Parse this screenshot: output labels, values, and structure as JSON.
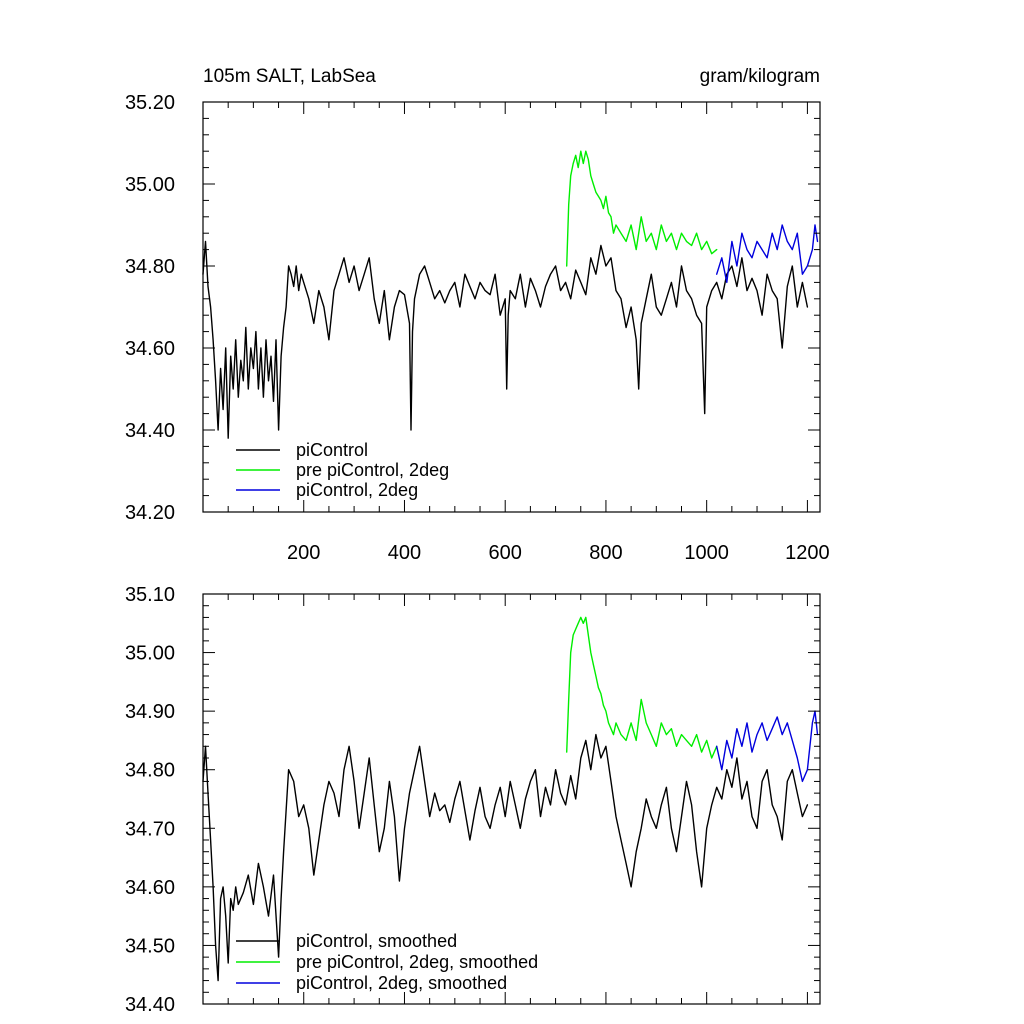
{
  "chart_data": [
    {
      "type": "line",
      "title": "105m SALT, LabSea",
      "units": "gram/kilogram",
      "xlim": [
        0,
        1225
      ],
      "ylim": [
        34.2,
        35.2
      ],
      "yticks": [
        34.2,
        34.4,
        34.6,
        34.8,
        35.0,
        35.2
      ],
      "ytick_labels": [
        "34.20",
        "34.40",
        "34.60",
        "34.80",
        "35.00",
        "35.20"
      ],
      "xticks": [
        200,
        400,
        600,
        800,
        1000,
        1200
      ],
      "xtick_labels": [
        "200",
        "400",
        "600",
        "800",
        "1000",
        "1200"
      ],
      "series": [
        {
          "name": "piControl",
          "color": "#000000",
          "x": [
            0,
            5,
            10,
            15,
            20,
            25,
            30,
            35,
            40,
            45,
            50,
            55,
            60,
            65,
            70,
            75,
            80,
            85,
            90,
            95,
            100,
            105,
            110,
            115,
            120,
            125,
            130,
            135,
            140,
            145,
            150,
            155,
            160,
            165,
            170,
            175,
            180,
            185,
            190,
            195,
            200,
            210,
            220,
            230,
            240,
            250,
            260,
            270,
            280,
            290,
            300,
            310,
            320,
            330,
            340,
            350,
            360,
            370,
            380,
            390,
            400,
            410,
            413,
            416,
            420,
            430,
            440,
            450,
            460,
            470,
            480,
            490,
            500,
            510,
            520,
            530,
            540,
            550,
            560,
            570,
            580,
            590,
            600,
            603,
            606,
            610,
            620,
            630,
            640,
            650,
            660,
            670,
            680,
            690,
            700,
            710,
            720,
            730,
            740,
            750,
            760,
            770,
            780,
            790,
            800,
            810,
            820,
            830,
            840,
            850,
            860,
            865,
            870,
            880,
            890,
            900,
            910,
            920,
            930,
            940,
            950,
            960,
            970,
            980,
            990,
            996,
            1000,
            1010,
            1020,
            1030,
            1040,
            1050,
            1060,
            1070,
            1080,
            1090,
            1100,
            1110,
            1120,
            1130,
            1140,
            1150,
            1160,
            1170,
            1180,
            1190,
            1200
          ],
          "values": [
            34.78,
            34.86,
            34.75,
            34.7,
            34.62,
            34.52,
            34.4,
            34.55,
            34.45,
            34.6,
            34.38,
            34.58,
            34.5,
            34.62,
            34.48,
            34.57,
            34.52,
            34.65,
            34.5,
            34.6,
            34.55,
            34.64,
            34.5,
            34.6,
            34.48,
            34.62,
            34.52,
            34.58,
            34.47,
            34.62,
            34.4,
            34.58,
            34.65,
            34.7,
            34.8,
            34.78,
            34.75,
            34.8,
            34.74,
            34.78,
            34.76,
            34.72,
            34.66,
            34.74,
            34.7,
            34.62,
            34.74,
            34.78,
            34.82,
            34.76,
            34.8,
            34.74,
            34.78,
            34.82,
            34.72,
            34.66,
            34.74,
            34.62,
            34.7,
            34.74,
            34.73,
            34.66,
            34.4,
            34.64,
            34.72,
            34.78,
            34.8,
            34.76,
            34.72,
            34.74,
            34.71,
            34.74,
            34.76,
            34.7,
            34.78,
            34.75,
            34.72,
            34.76,
            34.74,
            34.73,
            34.78,
            34.68,
            34.72,
            34.5,
            34.68,
            34.74,
            34.72,
            34.78,
            34.7,
            34.77,
            34.74,
            34.7,
            34.75,
            34.78,
            34.8,
            34.74,
            34.76,
            34.72,
            34.79,
            34.76,
            34.73,
            34.82,
            34.78,
            34.85,
            34.8,
            34.82,
            34.74,
            34.72,
            34.65,
            34.7,
            34.62,
            34.5,
            34.66,
            34.72,
            34.78,
            34.7,
            34.68,
            34.72,
            34.76,
            34.7,
            34.8,
            34.74,
            34.72,
            34.68,
            34.66,
            34.44,
            34.7,
            34.74,
            34.76,
            34.72,
            34.78,
            34.8,
            34.75,
            34.82,
            34.74,
            34.77,
            34.74,
            34.68,
            34.78,
            34.74,
            34.72,
            34.6,
            34.75,
            34.8,
            34.7,
            34.76,
            34.7
          ]
        },
        {
          "name": "pre piControl, 2deg",
          "color": "#00ee00",
          "x": [
            722,
            726,
            730,
            735,
            740,
            745,
            750,
            755,
            760,
            765,
            770,
            775,
            780,
            785,
            790,
            795,
            800,
            805,
            810,
            815,
            820,
            830,
            840,
            850,
            860,
            870,
            880,
            890,
            900,
            910,
            920,
            930,
            940,
            950,
            960,
            970,
            980,
            990,
            1000,
            1010,
            1020
          ],
          "values": [
            34.8,
            34.95,
            35.02,
            35.05,
            35.07,
            35.04,
            35.08,
            35.05,
            35.08,
            35.06,
            35.02,
            35.0,
            34.98,
            34.97,
            34.96,
            34.94,
            34.97,
            34.93,
            34.92,
            34.88,
            34.9,
            34.88,
            34.86,
            34.9,
            34.84,
            34.92,
            34.86,
            34.88,
            34.84,
            34.9,
            34.86,
            34.88,
            34.84,
            34.88,
            34.86,
            34.85,
            34.88,
            34.84,
            34.86,
            34.83,
            34.84
          ]
        },
        {
          "name": "piControl, 2deg",
          "color": "#0000dd",
          "x": [
            1020,
            1030,
            1040,
            1050,
            1060,
            1070,
            1080,
            1090,
            1100,
            1110,
            1120,
            1130,
            1140,
            1150,
            1160,
            1170,
            1180,
            1190,
            1200,
            1210,
            1215,
            1220
          ],
          "values": [
            34.78,
            34.82,
            34.76,
            34.86,
            34.8,
            34.88,
            34.84,
            34.82,
            34.86,
            34.84,
            34.82,
            34.88,
            34.84,
            34.9,
            34.86,
            34.84,
            34.88,
            34.78,
            34.8,
            34.84,
            34.9,
            34.86
          ]
        }
      ],
      "legend": [
        "piControl",
        "pre piControl, 2deg",
        "piControl, 2deg"
      ]
    },
    {
      "type": "line",
      "title": "",
      "units": "",
      "xlim": [
        0,
        1225
      ],
      "ylim": [
        34.4,
        35.1
      ],
      "yticks": [
        34.4,
        34.5,
        34.6,
        34.7,
        34.8,
        34.9,
        35.0,
        35.1
      ],
      "ytick_labels": [
        "34.40",
        "34.50",
        "34.60",
        "34.70",
        "34.80",
        "34.90",
        "35.00",
        "35.10"
      ],
      "xticks": [
        200,
        400,
        600,
        800,
        1000,
        1200
      ],
      "xtick_labels": [],
      "series": [
        {
          "name": "piControl, smoothed",
          "color": "#000000",
          "x": [
            0,
            5,
            10,
            15,
            20,
            25,
            30,
            35,
            40,
            45,
            50,
            55,
            60,
            65,
            70,
            80,
            90,
            100,
            110,
            120,
            130,
            140,
            150,
            155,
            160,
            170,
            180,
            190,
            200,
            210,
            220,
            230,
            240,
            250,
            260,
            270,
            280,
            290,
            300,
            310,
            320,
            330,
            340,
            350,
            360,
            370,
            380,
            390,
            400,
            410,
            420,
            430,
            440,
            450,
            460,
            470,
            480,
            490,
            500,
            510,
            520,
            530,
            540,
            550,
            560,
            570,
            580,
            590,
            600,
            610,
            620,
            630,
            640,
            650,
            660,
            670,
            680,
            690,
            700,
            710,
            720,
            730,
            740,
            750,
            760,
            770,
            780,
            790,
            800,
            810,
            820,
            830,
            840,
            850,
            860,
            870,
            880,
            890,
            900,
            910,
            920,
            930,
            940,
            950,
            960,
            970,
            980,
            990,
            1000,
            1010,
            1020,
            1030,
            1040,
            1050,
            1060,
            1070,
            1080,
            1090,
            1100,
            1110,
            1120,
            1130,
            1140,
            1150,
            1160,
            1170,
            1180,
            1190,
            1200
          ],
          "values": [
            34.78,
            34.84,
            34.76,
            34.68,
            34.6,
            34.5,
            34.44,
            34.58,
            34.6,
            34.55,
            34.47,
            34.58,
            34.56,
            34.6,
            34.57,
            34.59,
            34.62,
            34.57,
            34.64,
            34.6,
            34.55,
            34.62,
            34.48,
            34.58,
            34.66,
            34.8,
            34.78,
            34.72,
            34.74,
            34.7,
            34.62,
            34.68,
            34.74,
            34.78,
            34.76,
            34.72,
            34.8,
            34.84,
            34.78,
            34.7,
            34.76,
            34.82,
            34.74,
            34.66,
            34.7,
            34.78,
            34.72,
            34.61,
            34.7,
            34.76,
            34.8,
            34.84,
            34.78,
            34.72,
            34.76,
            34.73,
            34.74,
            34.71,
            34.75,
            34.78,
            34.73,
            34.68,
            34.73,
            34.77,
            34.72,
            34.7,
            34.74,
            34.77,
            34.72,
            34.78,
            34.74,
            34.7,
            34.75,
            34.78,
            34.8,
            34.72,
            34.77,
            34.74,
            34.8,
            34.76,
            34.74,
            34.79,
            34.75,
            34.82,
            34.85,
            34.8,
            34.86,
            34.82,
            34.84,
            34.78,
            34.72,
            34.68,
            34.64,
            34.6,
            34.66,
            34.7,
            34.75,
            34.72,
            34.7,
            34.74,
            34.77,
            34.7,
            34.66,
            34.72,
            34.78,
            34.74,
            34.66,
            34.6,
            34.7,
            34.74,
            34.77,
            34.75,
            34.8,
            34.77,
            34.82,
            34.75,
            34.78,
            34.72,
            34.7,
            34.78,
            34.8,
            34.74,
            34.72,
            34.68,
            34.78,
            34.8,
            34.76,
            34.72,
            34.74
          ]
        },
        {
          "name": "pre piControl, 2deg, smoothed",
          "color": "#00ee00",
          "x": [
            722,
            726,
            730,
            735,
            740,
            745,
            750,
            755,
            760,
            765,
            770,
            775,
            780,
            785,
            790,
            795,
            800,
            805,
            810,
            815,
            820,
            830,
            840,
            850,
            860,
            870,
            880,
            890,
            900,
            910,
            920,
            930,
            940,
            950,
            960,
            970,
            980,
            990,
            1000,
            1010,
            1020
          ],
          "values": [
            34.83,
            34.92,
            35.0,
            35.03,
            35.04,
            35.05,
            35.06,
            35.05,
            35.06,
            35.03,
            35.0,
            34.98,
            34.96,
            34.94,
            34.93,
            34.91,
            34.9,
            34.88,
            34.87,
            34.86,
            34.88,
            34.86,
            34.85,
            34.88,
            34.85,
            34.92,
            34.88,
            34.86,
            34.84,
            34.88,
            34.86,
            34.87,
            34.84,
            34.86,
            34.85,
            34.84,
            34.86,
            34.83,
            34.85,
            34.82,
            34.84
          ]
        },
        {
          "name": "piControl, 2deg, smoothed",
          "color": "#0000dd",
          "x": [
            1020,
            1030,
            1040,
            1050,
            1060,
            1070,
            1080,
            1090,
            1100,
            1110,
            1120,
            1130,
            1140,
            1150,
            1160,
            1170,
            1180,
            1190,
            1200,
            1210,
            1215,
            1220
          ],
          "values": [
            34.84,
            34.8,
            34.85,
            34.82,
            34.87,
            34.84,
            34.88,
            34.83,
            34.86,
            34.88,
            34.85,
            34.87,
            34.89,
            34.86,
            34.88,
            34.85,
            34.82,
            34.78,
            34.8,
            34.88,
            34.9,
            34.86
          ]
        }
      ],
      "legend": [
        "piControl, smoothed",
        "pre piControl, 2deg, smoothed",
        "piControl, 2deg, smoothed"
      ]
    }
  ]
}
